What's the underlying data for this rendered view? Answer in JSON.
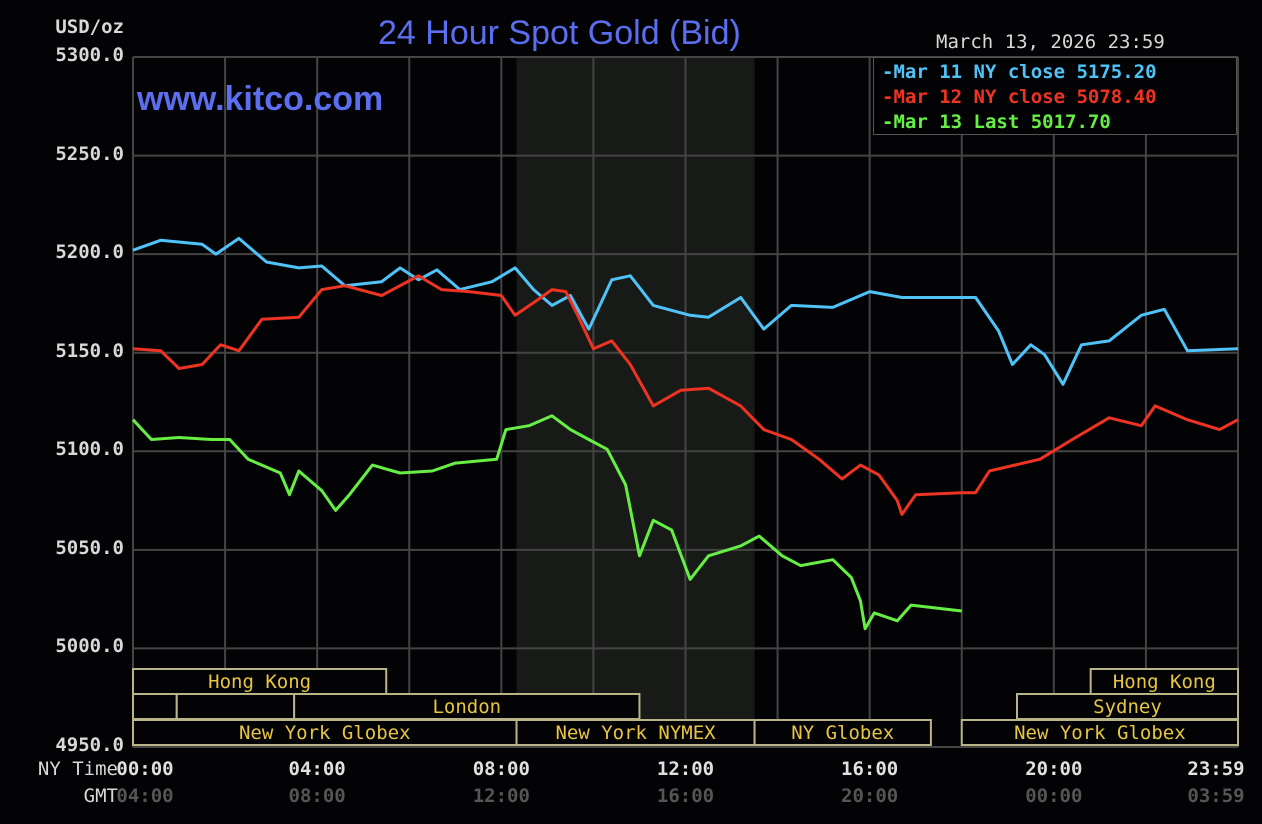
{
  "chart_data": {
    "type": "line",
    "title": "24 Hour Spot Gold (Bid)",
    "watermark": "www.kitco.com",
    "timestamp": "March 13, 2026 23:59",
    "ylabel": "USD/oz",
    "ylim": [
      4950,
      5300
    ],
    "yticks": [
      "5300.0",
      "5250.0",
      "5200.0",
      "5150.0",
      "5100.0",
      "5050.0",
      "5000.0",
      "4950.0"
    ],
    "ytick_values": [
      5300,
      5250,
      5200,
      5150,
      5100,
      5050,
      5000,
      4950
    ],
    "xlim_hours": [
      0,
      24
    ],
    "x_axis_rows": [
      {
        "label": "NY Time",
        "ticks": [
          "00:00",
          "04:00",
          "08:00",
          "12:00",
          "16:00",
          "20:00",
          "23:59"
        ],
        "color": "#e0e0e0"
      },
      {
        "label": "GMT",
        "ticks": [
          "04:00",
          "08:00",
          "12:00",
          "16:00",
          "20:00",
          "00:00",
          "03:59"
        ],
        "color": "#555555"
      }
    ],
    "xtick_hours": [
      0,
      4,
      8,
      12,
      16,
      20,
      24
    ],
    "grid": true,
    "legend_placement": "top-right",
    "shaded_region_hours": [
      8.33,
      13.5
    ],
    "sessions": [
      {
        "label": "Hong Kong",
        "row": 0,
        "start": 0,
        "end": 5.5
      },
      {
        "label": "Hong Kong",
        "row": 0,
        "start": 20.8,
        "end": 24
      },
      {
        "label": "",
        "row": 1,
        "start": 0,
        "end": 0.95
      },
      {
        "label": "",
        "row": 1,
        "start": 0.95,
        "end": 3.5
      },
      {
        "label": "London",
        "row": 1,
        "start": 3.5,
        "end": 11
      },
      {
        "label": "Sydney",
        "row": 1,
        "start": 19.2,
        "end": 24
      },
      {
        "label": "New York Globex",
        "row": 2,
        "start": 0,
        "end": 8.33
      },
      {
        "label": "New York NYMEX",
        "row": 2,
        "start": 8.33,
        "end": 13.5
      },
      {
        "label": "NY Globex",
        "row": 2,
        "start": 13.5,
        "end": 17.33
      },
      {
        "label": "New York Globex",
        "row": 2,
        "start": 18,
        "end": 24
      }
    ],
    "series": [
      {
        "name": "Mar 11 NY close 5175.20",
        "color": "#4fc3f7",
        "points": [
          [
            0,
            5202
          ],
          [
            0.6,
            5207
          ],
          [
            1.5,
            5205
          ],
          [
            1.8,
            5200
          ],
          [
            2.3,
            5208
          ],
          [
            2.9,
            5196
          ],
          [
            3.6,
            5193
          ],
          [
            4.1,
            5194
          ],
          [
            4.6,
            5184
          ],
          [
            5.4,
            5186
          ],
          [
            5.8,
            5193
          ],
          [
            6.2,
            5187
          ],
          [
            6.6,
            5192
          ],
          [
            7.1,
            5182
          ],
          [
            7.8,
            5186
          ],
          [
            8.3,
            5193
          ],
          [
            8.7,
            5182
          ],
          [
            9.1,
            5174
          ],
          [
            9.5,
            5179
          ],
          [
            9.9,
            5162
          ],
          [
            10.4,
            5187
          ],
          [
            10.8,
            5189
          ],
          [
            11.3,
            5174
          ],
          [
            12.1,
            5169
          ],
          [
            12.5,
            5168
          ],
          [
            13.2,
            5178
          ],
          [
            13.7,
            5162
          ],
          [
            14.3,
            5174
          ],
          [
            15.2,
            5173
          ],
          [
            16.0,
            5181
          ],
          [
            16.7,
            5178
          ],
          [
            18.0,
            5178
          ],
          [
            18.3,
            5178
          ],
          [
            18.8,
            5161
          ],
          [
            19.1,
            5144
          ],
          [
            19.5,
            5154
          ],
          [
            19.8,
            5149
          ],
          [
            20.2,
            5134
          ],
          [
            20.6,
            5154
          ],
          [
            21.2,
            5156
          ],
          [
            21.9,
            5169
          ],
          [
            22.4,
            5172
          ],
          [
            22.9,
            5151
          ],
          [
            24,
            5152
          ]
        ]
      },
      {
        "name": "Mar 12 NY close 5078.40",
        "color": "#ee3322",
        "points": [
          [
            0,
            5152
          ],
          [
            0.6,
            5151
          ],
          [
            1.0,
            5142
          ],
          [
            1.5,
            5144
          ],
          [
            1.9,
            5154
          ],
          [
            2.3,
            5151
          ],
          [
            2.8,
            5167
          ],
          [
            3.6,
            5168
          ],
          [
            4.1,
            5182
          ],
          [
            4.6,
            5184
          ],
          [
            5.4,
            5179
          ],
          [
            6.2,
            5189
          ],
          [
            6.7,
            5182
          ],
          [
            7.3,
            5181
          ],
          [
            8.0,
            5179
          ],
          [
            8.3,
            5169
          ],
          [
            8.8,
            5177
          ],
          [
            9.1,
            5182
          ],
          [
            9.4,
            5181
          ],
          [
            9.7,
            5167
          ],
          [
            10.0,
            5152
          ],
          [
            10.4,
            5156
          ],
          [
            10.8,
            5144
          ],
          [
            11.3,
            5123
          ],
          [
            11.9,
            5131
          ],
          [
            12.5,
            5132
          ],
          [
            13.2,
            5123
          ],
          [
            13.7,
            5111
          ],
          [
            14.3,
            5106
          ],
          [
            14.9,
            5096
          ],
          [
            15.4,
            5086
          ],
          [
            15.8,
            5093
          ],
          [
            16.2,
            5088
          ],
          [
            16.6,
            5075
          ],
          [
            16.7,
            5068
          ],
          [
            17.0,
            5078
          ],
          [
            18.0,
            5079
          ],
          [
            18.3,
            5079
          ],
          [
            18.6,
            5090
          ],
          [
            19.7,
            5096
          ],
          [
            20.4,
            5106
          ],
          [
            21.2,
            5117
          ],
          [
            21.9,
            5113
          ],
          [
            22.2,
            5123
          ],
          [
            22.9,
            5116
          ],
          [
            23.6,
            5111
          ],
          [
            24,
            5116
          ]
        ]
      },
      {
        "name": "Mar 13 Last 5017.70",
        "color": "#66ee44",
        "points": [
          [
            0,
            5116
          ],
          [
            0.4,
            5106
          ],
          [
            1.0,
            5107
          ],
          [
            1.7,
            5106
          ],
          [
            2.1,
            5106
          ],
          [
            2.5,
            5096
          ],
          [
            3.2,
            5089
          ],
          [
            3.4,
            5078
          ],
          [
            3.6,
            5090
          ],
          [
            4.1,
            5080
          ],
          [
            4.4,
            5070
          ],
          [
            4.7,
            5078
          ],
          [
            5.2,
            5093
          ],
          [
            5.8,
            5089
          ],
          [
            6.5,
            5090
          ],
          [
            7.0,
            5094
          ],
          [
            7.9,
            5096
          ],
          [
            8.1,
            5111
          ],
          [
            8.6,
            5113
          ],
          [
            9.1,
            5118
          ],
          [
            9.5,
            5111
          ],
          [
            9.9,
            5106
          ],
          [
            10.3,
            5101
          ],
          [
            10.7,
            5083
          ],
          [
            11.0,
            5047
          ],
          [
            11.3,
            5065
          ],
          [
            11.7,
            5060
          ],
          [
            12.1,
            5035
          ],
          [
            12.5,
            5047
          ],
          [
            13.2,
            5052
          ],
          [
            13.6,
            5057
          ],
          [
            14.1,
            5047
          ],
          [
            14.5,
            5042
          ],
          [
            15.2,
            5045
          ],
          [
            15.6,
            5036
          ],
          [
            15.8,
            5024
          ],
          [
            15.9,
            5010
          ],
          [
            16.1,
            5018
          ],
          [
            16.6,
            5014
          ],
          [
            16.9,
            5022
          ],
          [
            18.0,
            5019
          ]
        ]
      }
    ]
  }
}
